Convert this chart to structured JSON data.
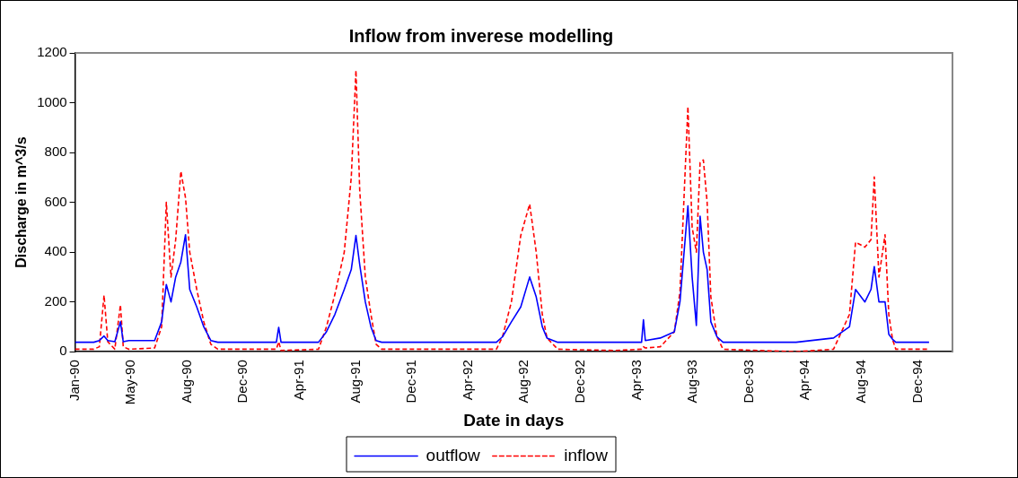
{
  "chart_data": {
    "type": "line",
    "title": "Inflow from inverese modelling",
    "xlabel": "Date in days",
    "ylabel": "Discharge in m^3/s",
    "x": [
      "1990-01-01",
      "1990-02-10",
      "1990-02-22",
      "1990-03-04",
      "1990-03-12",
      "1990-03-27",
      "1990-04-08",
      "1990-04-14",
      "1990-04-26",
      "1990-06-20",
      "1990-07-05",
      "1990-07-15",
      "1990-07-25",
      "1990-08-04",
      "1990-08-15",
      "1990-08-25",
      "1990-09-03",
      "1990-09-18",
      "1990-10-03",
      "1990-10-18",
      "1990-11-02",
      "1991-03-07",
      "1991-03-12",
      "1991-03-17",
      "1991-06-05",
      "1991-06-22",
      "1991-07-10",
      "1991-07-30",
      "1991-08-14",
      "1991-08-24",
      "1991-09-01",
      "1991-09-13",
      "1991-09-25",
      "1991-10-06",
      "1991-10-18",
      "1992-06-19",
      "1992-07-02",
      "1992-07-21",
      "1992-08-10",
      "1992-08-29",
      "1992-09-12",
      "1992-09-25",
      "1992-10-05",
      "1992-10-28",
      "1993-02-24",
      "1993-04-25",
      "1993-04-29",
      "1993-05-03",
      "1993-06-04",
      "1993-07-04",
      "1993-07-16",
      "1993-08-02",
      "1993-08-11",
      "1993-08-20",
      "1993-08-28",
      "1993-09-04",
      "1993-09-12",
      "1993-09-20",
      "1993-10-03",
      "1993-10-16",
      "1994-03-21",
      "1994-06-09",
      "1994-07-13",
      "1994-07-26",
      "1994-08-15",
      "1994-08-28",
      "1994-09-04",
      "1994-09-14",
      "1994-09-27",
      "1994-10-05",
      "1994-10-13",
      "1994-10-20",
      "1994-12-30"
    ],
    "series": [
      {
        "name": "outflow",
        "color": "#0000ff",
        "line_style": "solid",
        "values": [
          38,
          38,
          45,
          63,
          45,
          40,
          120,
          40,
          45,
          45,
          120,
          270,
          200,
          300,
          360,
          470,
          250,
          180,
          100,
          45,
          38,
          38,
          98,
          38,
          38,
          80,
          150,
          250,
          330,
          467,
          350,
          200,
          100,
          45,
          38,
          38,
          60,
          120,
          180,
          300,
          220,
          100,
          55,
          38,
          38,
          38,
          128,
          45,
          55,
          80,
          200,
          586,
          300,
          105,
          544,
          400,
          330,
          120,
          60,
          38,
          38,
          55,
          100,
          250,
          200,
          250,
          342,
          200,
          200,
          70,
          50,
          38,
          38
        ]
      },
      {
        "name": "inflow",
        "color": "#ff0000",
        "line_style": "dashed",
        "values": [
          10,
          10,
          20,
          227,
          40,
          10,
          188,
          20,
          10,
          15,
          100,
          600,
          300,
          450,
          725,
          618,
          400,
          250,
          120,
          30,
          10,
          10,
          40,
          5,
          10,
          100,
          230,
          400,
          700,
          1130,
          650,
          300,
          150,
          30,
          10,
          10,
          60,
          200,
          467,
          593,
          400,
          150,
          55,
          10,
          5,
          10,
          20,
          15,
          20,
          80,
          240,
          984,
          500,
          400,
          760,
          770,
          600,
          220,
          60,
          10,
          0,
          10,
          150,
          440,
          420,
          450,
          702,
          300,
          470,
          150,
          50,
          10,
          10
        ]
      }
    ],
    "xlim": [
      "1990-01-01",
      "1995-02-18"
    ],
    "xticks": [
      {
        "value": "1990-01-01",
        "label": "Jan-90"
      },
      {
        "value": "1990-05-01",
        "label": "May-90"
      },
      {
        "value": "1990-08-29",
        "label": "Aug-90"
      },
      {
        "value": "1990-12-27",
        "label": "Dec-90"
      },
      {
        "value": "1991-04-26",
        "label": "Apr-91"
      },
      {
        "value": "1991-08-24",
        "label": "Aug-91"
      },
      {
        "value": "1991-12-22",
        "label": "Dec-91"
      },
      {
        "value": "1992-04-20",
        "label": "Apr-92"
      },
      {
        "value": "1992-08-18",
        "label": "Aug-92"
      },
      {
        "value": "1992-12-16",
        "label": "Dec-92"
      },
      {
        "value": "1993-04-15",
        "label": "Apr-93"
      },
      {
        "value": "1993-08-13",
        "label": "Aug-93"
      },
      {
        "value": "1993-12-11",
        "label": "Dec-93"
      },
      {
        "value": "1994-04-10",
        "label": "Apr-94"
      },
      {
        "value": "1994-08-08",
        "label": "Aug-94"
      },
      {
        "value": "1994-12-06",
        "label": "Dec-94"
      }
    ],
    "ylim": [
      0,
      1200
    ],
    "yticks": [
      0,
      200,
      400,
      600,
      800,
      1000,
      1200
    ],
    "legend": "bottom"
  }
}
